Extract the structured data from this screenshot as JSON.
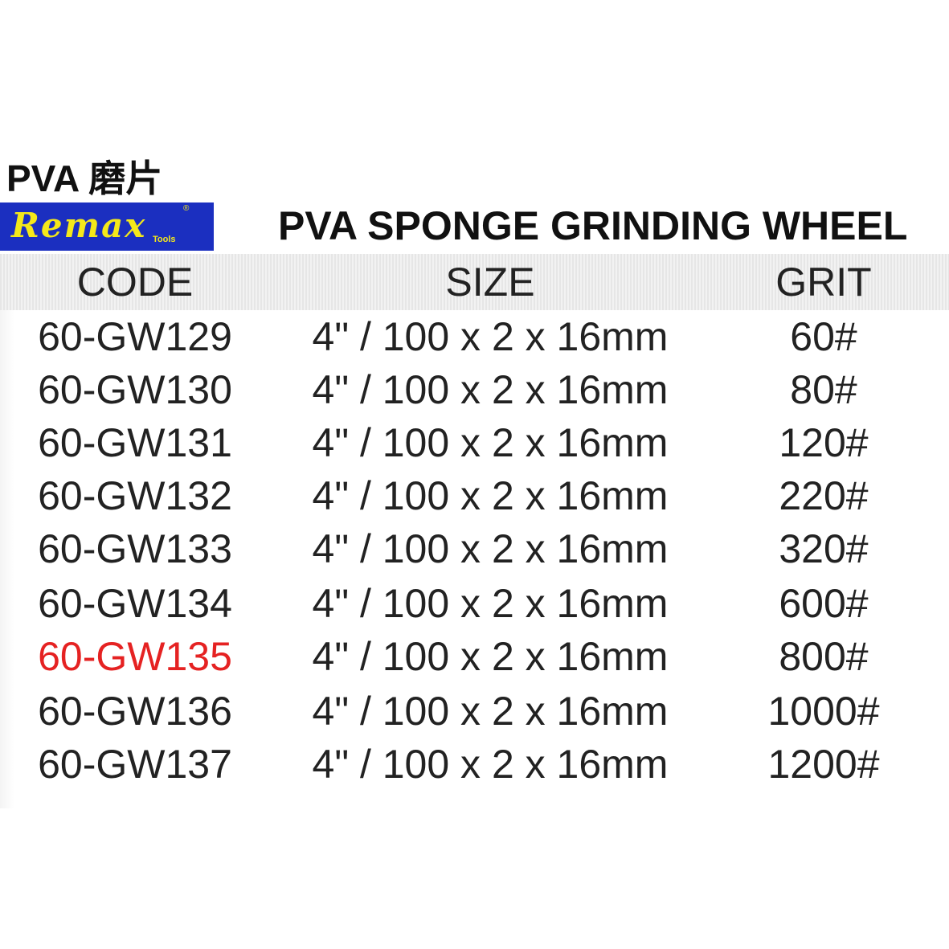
{
  "title": "PVA 磨片",
  "logo": {
    "brand": "Remax",
    "sub": "Tools",
    "reg": "®",
    "colors": {
      "background": "#1b2fc0",
      "text": "#f4e81a"
    }
  },
  "heading": "PVA SPONGE GRINDING WHEEL",
  "table": {
    "headers": [
      "CODE",
      "SIZE",
      "GRIT"
    ],
    "rows": [
      {
        "code": "60-GW129",
        "size": "4\" / 100 x 2 x 16mm",
        "grit": "60#"
      },
      {
        "code": "60-GW130",
        "size": "4\" / 100 x 2 x 16mm",
        "grit": "80#"
      },
      {
        "code": "60-GW131",
        "size": "4\" / 100 x 2 x 16mm",
        "grit": "120#"
      },
      {
        "code": "60-GW132",
        "size": "4\" / 100 x 2 x 16mm",
        "grit": "220#"
      },
      {
        "code": "60-GW133",
        "size": "4\" / 100 x 2 x 16mm",
        "grit": "320#"
      },
      {
        "code": "60-GW134",
        "size": "4\" / 100 x 2 x 16mm",
        "grit": "600#"
      },
      {
        "code": "60-GW135",
        "size": "4\" / 100 x 2 x 16mm",
        "grit": "800#",
        "highlight": "#e52222"
      },
      {
        "code": "60-GW136",
        "size": "4\" / 100 x 2 x 16mm",
        "grit": "1000#"
      },
      {
        "code": "60-GW137",
        "size": "4\" / 100 x 2 x 16mm",
        "grit": "1200#"
      }
    ]
  }
}
